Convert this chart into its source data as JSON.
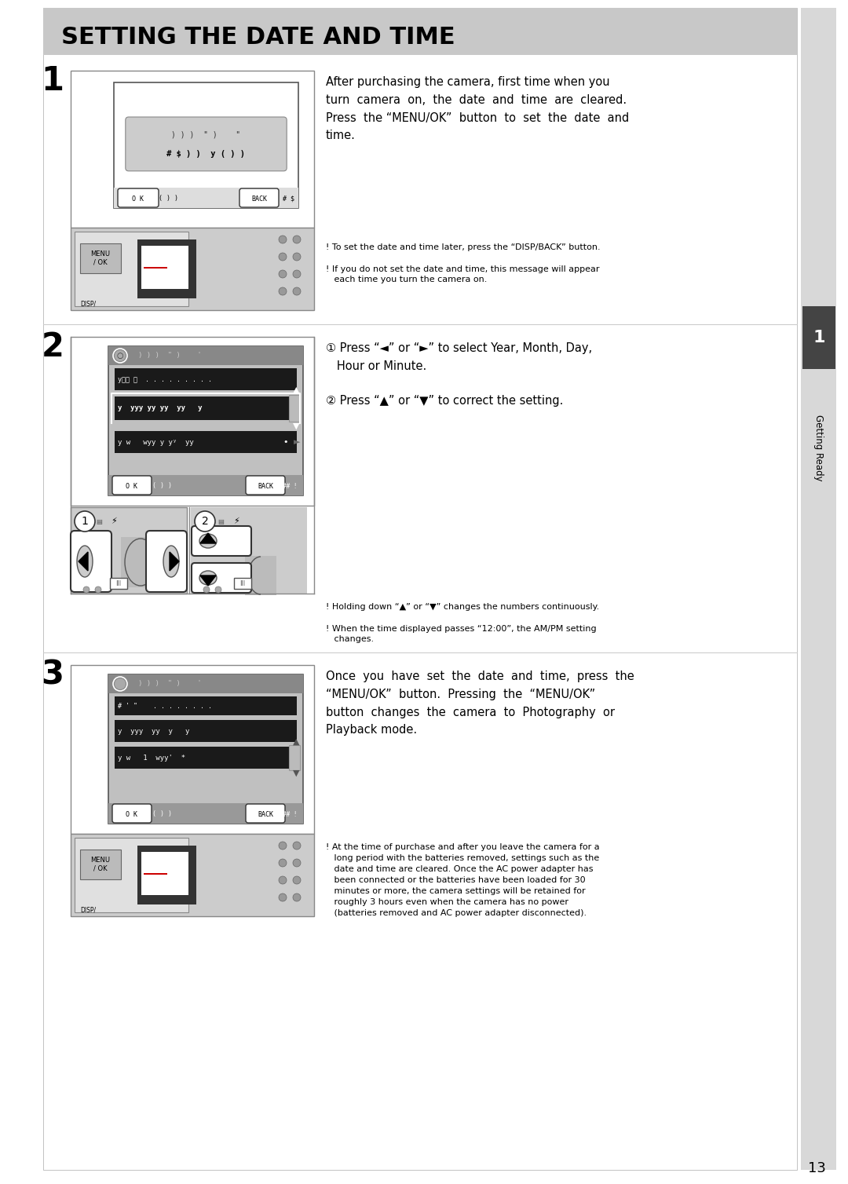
{
  "title": "SETTING THE DATE AND TIME",
  "title_bg": "#c8c8c8",
  "page_bg": "#ffffff",
  "page_number": "13",
  "sidebar_text": "Getting Ready",
  "sidebar_bg": "#d8d8d8",
  "step1_main_text": "After purchasing the camera, first time when you\nturn  camera  on,  the  date  and  time  are  cleared.\nPress  the “MENU/OK”  button  to  set  the  date  and\ntime.",
  "step1_note1": "! To set the date and time later, press the “DISP/BACK” button.",
  "step1_note2": "! If you do not set the date and time, this message will appear\n   each time you turn the camera on.",
  "step2_main_text1": "① Press “◄” or “►” to select Year, Month, Day,\n   Hour or Minute.",
  "step2_main_text2": "② Press “▲” or “▼” to correct the setting.",
  "step2_note1": "! Holding down “▲” or “▼” changes the numbers continuously.",
  "step2_note2": "! When the time displayed passes “12:00”, the AM/PM setting\n   changes.",
  "step3_main_text": "Once  you  have  set  the  date  and  time,  press  the\n“MENU/OK”  button.  Pressing  the  “MENU/OK”\nbutton  changes  the  camera  to  Photography  or\nPlayback mode.",
  "step3_note": "! At the time of purchase and after you leave the camera for a\n   long period with the batteries removed, settings such as the\n   date and time are cleared. Once the AC power adapter has\n   been connected or the batteries have been loaded for 30\n   minutes or more, the camera settings will be retained for\n   roughly 3 hours even when the camera has no power\n   (batteries removed and AC power adapter disconnected)."
}
